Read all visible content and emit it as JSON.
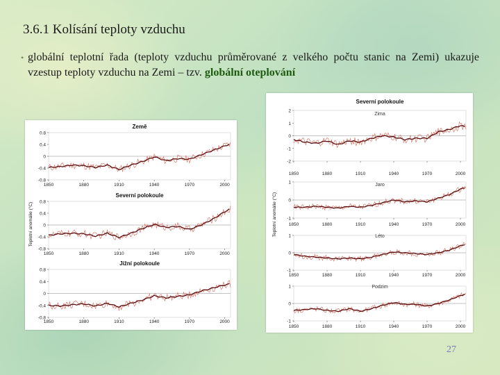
{
  "slide": {
    "title": "3.6.1 Kolísání teploty vzduchu",
    "bullet_text": "globální teplotní řada (teploty vzduchu průměrované z velkého počtu stanic na Zemi) ukazuje vzestup teploty vzduchu na Zemi – tzv. ",
    "bullet_emphasis": "globální oteplování",
    "page_number": "27"
  },
  "colors": {
    "raw_series": "#d9776a",
    "smooth_series": "#5a0a0a",
    "zero_line": "#888888",
    "emphasis": "#1e5a10"
  },
  "chart_data": [
    {
      "type": "line",
      "panel": "left",
      "title": "Země",
      "ylabel": "Teplotní anomálie (°C)",
      "xlim": [
        1850,
        2005
      ],
      "ylim": [
        -0.8,
        0.8
      ],
      "x_ticks": [
        "1850",
        "1880",
        "1910",
        "1940",
        "1970",
        "2000"
      ],
      "y_ticks": [
        "0.8",
        "0.4",
        "0",
        "-0.4",
        "-0.8"
      ],
      "x": [
        1850,
        1860,
        1870,
        1880,
        1890,
        1900,
        1910,
        1920,
        1930,
        1940,
        1950,
        1960,
        1970,
        1980,
        1990,
        2000,
        2005
      ],
      "series": [
        {
          "name": "smoothed",
          "values": [
            -0.38,
            -0.35,
            -0.3,
            -0.32,
            -0.38,
            -0.3,
            -0.45,
            -0.3,
            -0.18,
            -0.02,
            -0.15,
            -0.08,
            -0.1,
            0.05,
            0.2,
            0.35,
            0.42
          ]
        }
      ]
    },
    {
      "type": "line",
      "panel": "left",
      "title": "Severní polokoule",
      "xlim": [
        1850,
        2005
      ],
      "ylim": [
        -0.8,
        0.8
      ],
      "x_ticks": [
        "1850",
        "1880",
        "1910",
        "1940",
        "1970",
        "2000"
      ],
      "y_ticks": [
        "0.8",
        "0.4",
        "0",
        "-0.4",
        "-0.8"
      ],
      "x": [
        1850,
        1860,
        1870,
        1880,
        1890,
        1900,
        1910,
        1920,
        1930,
        1940,
        1950,
        1960,
        1970,
        1980,
        1990,
        2000,
        2005
      ],
      "series": [
        {
          "name": "smoothed",
          "values": [
            -0.35,
            -0.3,
            -0.28,
            -0.3,
            -0.38,
            -0.28,
            -0.42,
            -0.28,
            -0.12,
            0.02,
            -0.08,
            -0.05,
            -0.15,
            0.0,
            0.2,
            0.45,
            0.55
          ]
        }
      ]
    },
    {
      "type": "line",
      "panel": "left",
      "title": "Jižní polokoule",
      "xlim": [
        1850,
        2005
      ],
      "ylim": [
        -0.8,
        0.8
      ],
      "x_ticks": [
        "1850",
        "1880",
        "1910",
        "1940",
        "1970",
        "2000"
      ],
      "y_ticks": [
        "0.8",
        "0.4",
        "0",
        "-0.4",
        "-0.8"
      ],
      "x": [
        1850,
        1860,
        1870,
        1880,
        1890,
        1900,
        1910,
        1920,
        1930,
        1940,
        1950,
        1960,
        1970,
        1980,
        1990,
        2000,
        2005
      ],
      "series": [
        {
          "name": "smoothed",
          "values": [
            -0.4,
            -0.42,
            -0.38,
            -0.35,
            -0.42,
            -0.33,
            -0.45,
            -0.33,
            -0.22,
            -0.08,
            -0.15,
            -0.1,
            -0.05,
            0.08,
            0.18,
            0.28,
            0.32
          ]
        }
      ]
    },
    {
      "type": "line",
      "panel": "right",
      "title": "Severní polokoule",
      "subtitle": "Zima",
      "ylabel": "Teplotní anomálie (°C)",
      "xlim": [
        1850,
        2005
      ],
      "ylim": [
        -2,
        2
      ],
      "x_ticks": [
        "1850",
        "1880",
        "1910",
        "1940",
        "1970",
        "2000"
      ],
      "y_ticks": [
        "2",
        "1",
        "0",
        "-1",
        "-2"
      ],
      "x": [
        1850,
        1860,
        1870,
        1880,
        1890,
        1900,
        1910,
        1920,
        1930,
        1940,
        1950,
        1960,
        1970,
        1980,
        1990,
        2000,
        2005
      ],
      "series": [
        {
          "name": "smoothed",
          "values": [
            -0.3,
            -0.5,
            -0.6,
            -0.4,
            -0.7,
            -0.4,
            -0.5,
            -0.2,
            0.0,
            -0.1,
            -0.3,
            -0.2,
            -0.2,
            0.3,
            0.5,
            0.8,
            0.7
          ]
        }
      ]
    },
    {
      "type": "line",
      "panel": "right",
      "subtitle": "Jaro",
      "xlim": [
        1850,
        2005
      ],
      "ylim": [
        -1,
        1
      ],
      "x_ticks": [
        "1850",
        "1880",
        "1910",
        "1940",
        "1970",
        "2000"
      ],
      "y_ticks": [
        "1",
        "0",
        "-1"
      ],
      "x": [
        1850,
        1860,
        1870,
        1880,
        1890,
        1900,
        1910,
        1920,
        1930,
        1940,
        1950,
        1960,
        1970,
        1980,
        1990,
        2000,
        2005
      ],
      "series": [
        {
          "name": "smoothed",
          "values": [
            -0.4,
            -0.4,
            -0.35,
            -0.4,
            -0.45,
            -0.35,
            -0.4,
            -0.3,
            -0.15,
            0.0,
            -0.1,
            -0.05,
            -0.1,
            0.1,
            0.3,
            0.6,
            0.7
          ]
        }
      ]
    },
    {
      "type": "line",
      "panel": "right",
      "subtitle": "Léto",
      "xlim": [
        1850,
        2005
      ],
      "ylim": [
        -1,
        1
      ],
      "x_ticks": [
        "1850",
        "1880",
        "1910",
        "1940",
        "1970",
        "2000"
      ],
      "y_ticks": [
        "1",
        "0",
        "-1"
      ],
      "x": [
        1850,
        1860,
        1870,
        1880,
        1890,
        1900,
        1910,
        1920,
        1930,
        1940,
        1950,
        1960,
        1970,
        1980,
        1990,
        2000,
        2005
      ],
      "series": [
        {
          "name": "smoothed",
          "values": [
            -0.1,
            -0.2,
            -0.25,
            -0.3,
            -0.35,
            -0.3,
            -0.35,
            -0.25,
            -0.1,
            0.05,
            0.0,
            -0.05,
            -0.1,
            0.0,
            0.15,
            0.4,
            0.5
          ]
        }
      ]
    },
    {
      "type": "line",
      "panel": "right",
      "subtitle": "Podzim",
      "xlim": [
        1850,
        2005
      ],
      "ylim": [
        -1,
        1
      ],
      "x_ticks": [
        "1850",
        "1880",
        "1910",
        "1940",
        "1970",
        "2000"
      ],
      "y_ticks": [
        "1",
        "0",
        "-1"
      ],
      "x": [
        1850,
        1860,
        1870,
        1880,
        1890,
        1900,
        1910,
        1920,
        1930,
        1940,
        1950,
        1960,
        1970,
        1980,
        1990,
        2000,
        2005
      ],
      "series": [
        {
          "name": "smoothed",
          "values": [
            -0.4,
            -0.35,
            -0.3,
            -0.4,
            -0.45,
            -0.3,
            -0.45,
            -0.3,
            -0.1,
            0.05,
            -0.05,
            -0.05,
            -0.15,
            0.0,
            0.2,
            0.45,
            0.55
          ]
        }
      ]
    }
  ]
}
